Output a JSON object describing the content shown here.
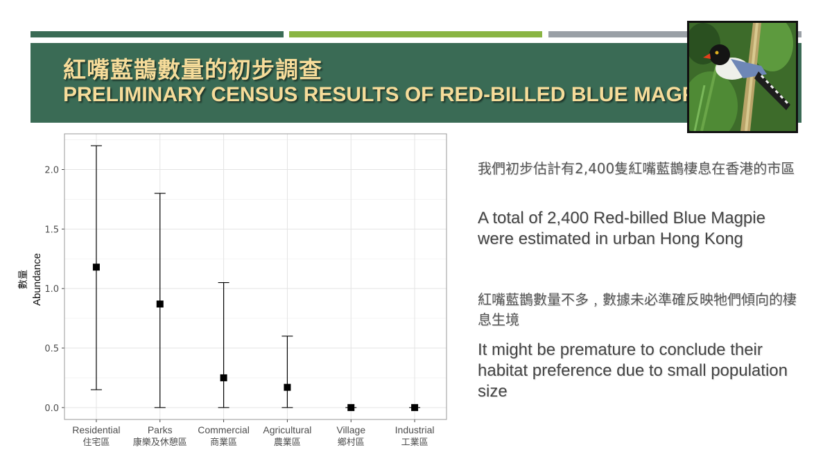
{
  "slide": {
    "title_cn": "紅嘴藍鵲數量的初步調查",
    "title_en": "PRELIMINARY CENSUS RESULTS OF RED-BILLED BLUE MAGPIE",
    "colors": {
      "dark_green": "#3a6b55",
      "light_green": "#8ab543",
      "gray": "#9aa0a6",
      "title_text": "#f6dc9a"
    },
    "photo_icon": "red-billed-blue-magpie-photo"
  },
  "text": {
    "cn_1": "我們初步估計有2,400隻紅嘴藍鵲棲息在香港的市區",
    "en_1": "A total of 2,400 Red-billed Blue Magpie were estimated in urban Hong Kong",
    "cn_2": "紅嘴藍鵲數量不多﹐數據未必準確反映牠們傾向的棲息生境",
    "en_2": "It might be premature to conclude their habitat preference due to small population size"
  },
  "chart_data": {
    "type": "scatter",
    "xlabel": "",
    "ylabel_cn": "數量",
    "ylabel_en": "Abundance",
    "ylim": [
      -0.1,
      2.3
    ],
    "yticks": [
      "0.0",
      "0.5",
      "1.0",
      "1.5",
      "2.0"
    ],
    "grid": true,
    "categories": [
      {
        "en": "Residential",
        "cn": "住宅區"
      },
      {
        "en": "Parks",
        "cn": "康樂及休憩區"
      },
      {
        "en": "Commercial",
        "cn": "商業區"
      },
      {
        "en": "Agricultural",
        "cn": "農業區"
      },
      {
        "en": "Village",
        "cn": "鄉村區"
      },
      {
        "en": "Industrial",
        "cn": "工業區"
      }
    ],
    "values": [
      1.18,
      0.87,
      0.25,
      0.17,
      0.0,
      0.0
    ],
    "lower": [
      0.15,
      0.0,
      0.0,
      0.0,
      0.0,
      0.0
    ],
    "upper": [
      2.2,
      1.8,
      1.05,
      0.6,
      0.0,
      0.0
    ]
  }
}
